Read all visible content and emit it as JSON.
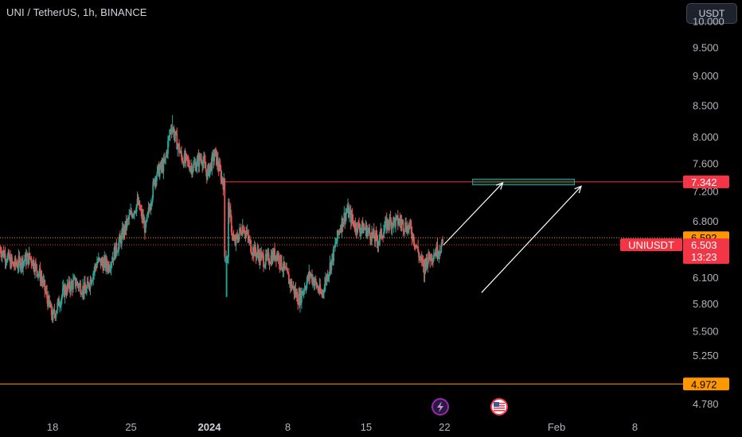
{
  "header": {
    "title": "UNI / TetherUS, 1h, BINANCE",
    "currency_button": "USDT"
  },
  "colors": {
    "background": "#000000",
    "up": "#26a69a",
    "down": "#ef5350",
    "resistance_line": "#f23645",
    "support_line": "#f7525f",
    "price_tag_orange": "#ff9800",
    "price_tag_red": "#f23645",
    "target_zone": "#1e7d5a",
    "arrow": "#ffffff"
  },
  "icons": {
    "lightning_badge": "lightning-icon",
    "flag_badge": "us-flag-icon"
  },
  "chart_data": {
    "type": "candlestick",
    "symbol": "UNIUSDT",
    "interval": "1h",
    "y_axis_ticks": [
      "10.000",
      "9.500",
      "9.000",
      "8.500",
      "8.000",
      "7.600",
      "7.200",
      "6.800",
      "6.100",
      "5.800",
      "5.500",
      "5.250",
      "4.780"
    ],
    "y_axis_values": [
      10.0,
      9.5,
      9.0,
      8.5,
      8.0,
      7.6,
      7.2,
      6.8,
      6.1,
      5.8,
      5.5,
      5.25,
      4.78
    ],
    "ylim": [
      4.7,
      10.05
    ],
    "log_scale": true,
    "x_axis_ticks": [
      {
        "label": "18",
        "day": 18,
        "bold": false
      },
      {
        "label": "25",
        "day": 25,
        "bold": false
      },
      {
        "label": "2024",
        "day": 32,
        "bold": true
      },
      {
        "label": "8",
        "day": 39,
        "bold": false
      },
      {
        "label": "15",
        "day": 46,
        "bold": false
      },
      {
        "label": "22",
        "day": 53,
        "bold": false
      },
      {
        "label": "Feb",
        "day": 63,
        "bold": false
      },
      {
        "label": "8",
        "day": 70,
        "bold": false
      }
    ],
    "x_axis_unit_note": "days from 30 Nov 2023",
    "xlim": [
      13.3,
      74.3
    ],
    "price_path": [
      [
        13.3,
        6.45
      ],
      [
        14.5,
        6.25
      ],
      [
        16,
        6.35
      ],
      [
        17,
        6.1
      ],
      [
        18,
        5.65
      ],
      [
        19,
        5.95
      ],
      [
        20,
        6.05
      ],
      [
        21,
        5.95
      ],
      [
        22,
        6.3
      ],
      [
        23,
        6.25
      ],
      [
        24,
        6.55
      ],
      [
        25,
        6.9
      ],
      [
        25.6,
        7.05
      ],
      [
        26.3,
        6.7
      ],
      [
        27.2,
        7.45
      ],
      [
        28,
        7.6
      ],
      [
        28.6,
        8.2
      ],
      [
        29.5,
        7.7
      ],
      [
        30.5,
        7.55
      ],
      [
        31.3,
        7.7
      ],
      [
        31.8,
        7.45
      ],
      [
        32.5,
        7.75
      ],
      [
        33,
        7.45
      ],
      [
        33.5,
        7.2
      ],
      [
        34.2,
        6.5
      ],
      [
        35,
        6.75
      ],
      [
        35.8,
        6.45
      ],
      [
        37,
        6.3
      ],
      [
        38,
        6.4
      ],
      [
        39,
        6.1
      ],
      [
        40,
        5.85
      ],
      [
        41,
        6.15
      ],
      [
        42,
        5.9
      ],
      [
        43,
        6.35
      ],
      [
        43.7,
        6.75
      ],
      [
        44.3,
        6.95
      ],
      [
        45,
        6.75
      ],
      [
        46,
        6.7
      ],
      [
        47,
        6.55
      ],
      [
        48,
        6.8
      ],
      [
        49,
        6.8
      ],
      [
        50,
        6.7
      ],
      [
        51,
        6.25
      ],
      [
        52,
        6.4
      ],
      [
        52.9,
        6.5
      ]
    ],
    "horizontal_levels": [
      {
        "price": 7.342,
        "label": "7.342",
        "style": "solid",
        "color_key": "resistance_line"
      },
      {
        "price": 6.592,
        "label": "6.592",
        "style": "dotted",
        "color_key": "price_tag_orange"
      },
      {
        "price": 6.503,
        "label": "6.503",
        "style": "dotted",
        "color_key": "price_tag_red"
      },
      {
        "price": 4.972,
        "label": "4.972",
        "style": "solid",
        "color_key": "price_tag_orange"
      }
    ],
    "resistance_start_day": 33.4,
    "current_price_tag": {
      "symbol": "UNIUSDT",
      "price": "6.503",
      "countdown": "13:23"
    },
    "target_zone": {
      "day_start": 55.5,
      "day_end": 64.6,
      "price_low": 7.3,
      "price_high": 7.38
    },
    "arrows": [
      {
        "from": [
          52.9,
          6.5
        ],
        "to": [
          58.2,
          7.33
        ]
      },
      {
        "from": [
          56.3,
          5.93
        ],
        "to": [
          65.2,
          7.28
        ]
      }
    ]
  }
}
